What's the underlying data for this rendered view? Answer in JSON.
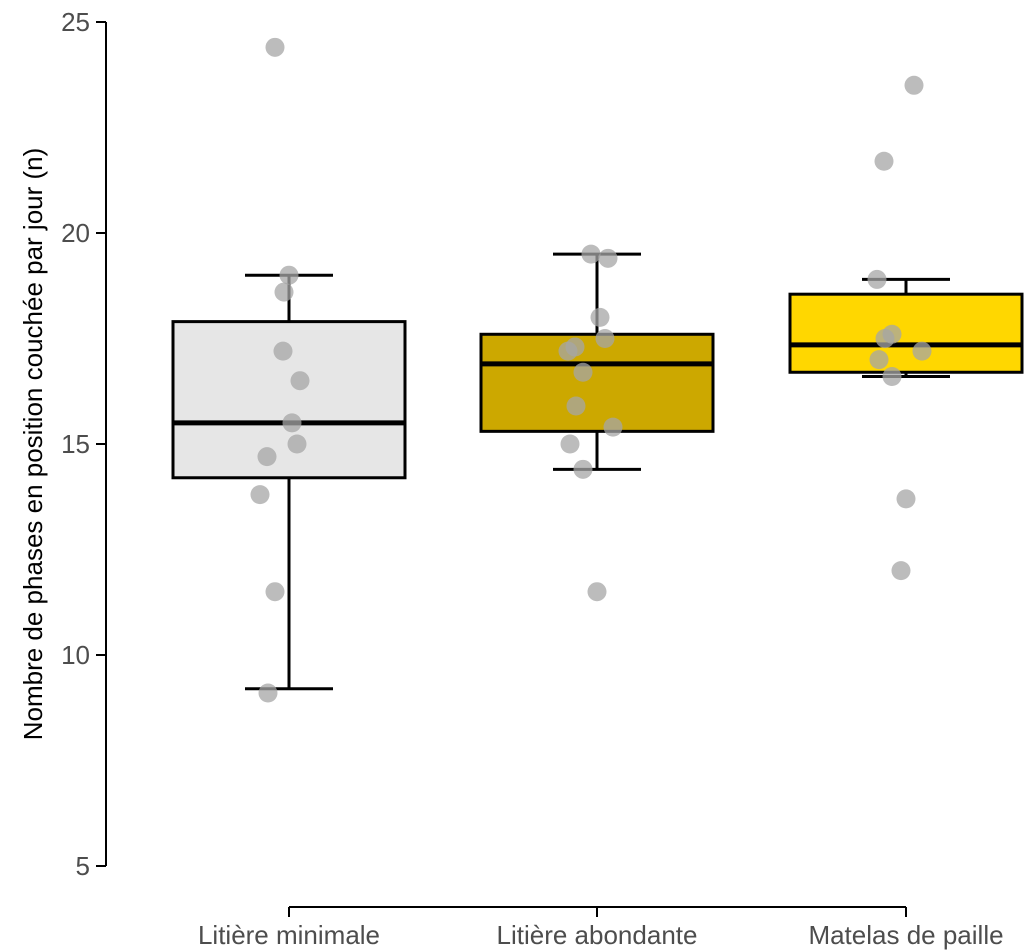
{
  "chart_data": {
    "type": "box",
    "title": "",
    "xlabel": "",
    "ylabel": "Nombre de phases en position couchée par jour (n)",
    "ylim": [
      5,
      25
    ],
    "yticks": [
      5,
      10,
      15,
      20,
      25
    ],
    "grid": false,
    "legend": "none",
    "categories": [
      "Litière minimale",
      "Litière abondante",
      "Matelas de paille"
    ],
    "colors": [
      "#e6e6e6",
      "#cca800",
      "#ffd700"
    ],
    "point_color": "#a6a6a6",
    "boxes": [
      {
        "whisker_low": 9.2,
        "q1": 14.2,
        "median": 15.5,
        "q3": 17.9,
        "whisker_high": 19.0
      },
      {
        "whisker_low": 14.4,
        "q1": 15.3,
        "median": 16.9,
        "q3": 17.6,
        "whisker_high": 19.5
      },
      {
        "whisker_low": 16.6,
        "q1": 16.7,
        "median": 17.35,
        "q3": 18.55,
        "whisker_high": 18.9
      }
    ],
    "points": [
      {
        "category": "Litière minimale",
        "values": [
          24.4,
          19.0,
          18.6,
          17.2,
          16.5,
          15.5,
          15.0,
          14.7,
          13.8,
          11.5,
          9.1
        ]
      },
      {
        "category": "Litière abondante",
        "values": [
          19.5,
          19.4,
          18.0,
          17.5,
          17.3,
          17.2,
          16.7,
          15.9,
          15.4,
          15.0,
          14.4,
          11.5
        ]
      },
      {
        "category": "Matelas de paille",
        "values": [
          23.5,
          21.7,
          18.9,
          17.6,
          17.5,
          17.2,
          17.0,
          16.6,
          13.7,
          12.0
        ]
      }
    ]
  }
}
